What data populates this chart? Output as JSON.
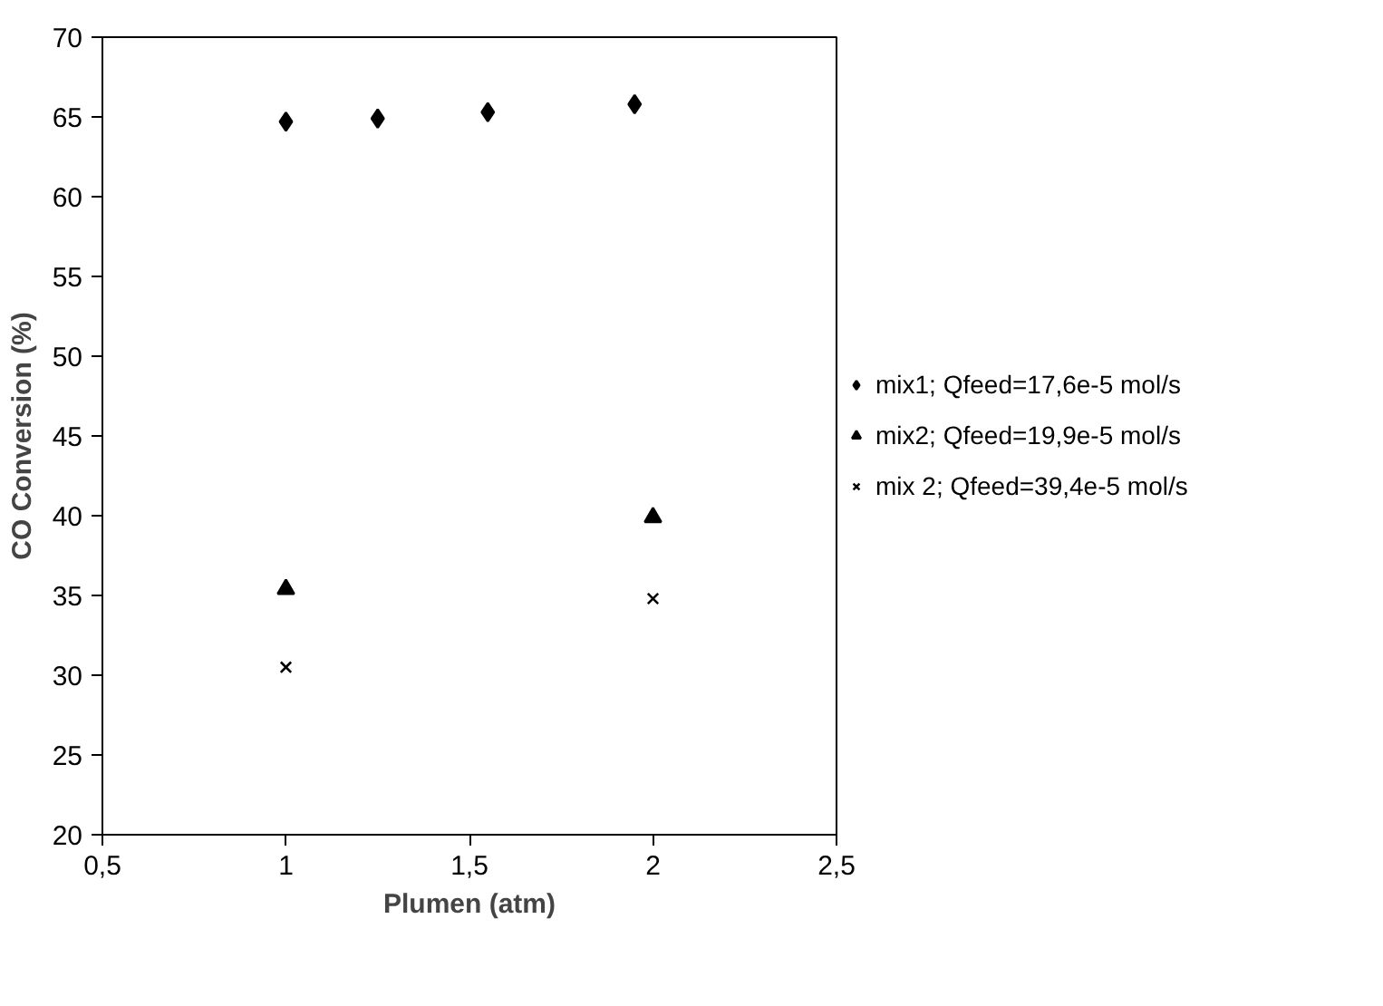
{
  "chart_data": {
    "type": "scatter",
    "xlabel": "Plumen (atm)",
    "ylabel": "CO Conversion (%)",
    "xlim": [
      0.5,
      2.5
    ],
    "xticks": [
      {
        "value": 0.5,
        "label": "0,5"
      },
      1,
      {
        "value": 1.5,
        "label": "1,5"
      },
      2,
      {
        "value": 2.5,
        "label": "2,5"
      }
    ],
    "ylim": [
      20,
      70
    ],
    "yticks": [
      20,
      25,
      30,
      35,
      40,
      45,
      50,
      55,
      60,
      65,
      70
    ],
    "grid": false,
    "legend": "right",
    "series": [
      {
        "name": "mix1; Qfeed=17,6e-5 mol/s",
        "color": "#000000",
        "marker": "diamond",
        "x": [
          1,
          1.25,
          1.55,
          1.95
        ],
        "values": [
          64.7,
          64.9,
          65.3,
          65.8
        ]
      },
      {
        "name": "mix2; Qfeed=19,9e-5 mol/s",
        "color": "#000000",
        "marker": "triangle",
        "x": [
          1,
          2
        ],
        "values": [
          35.4,
          39.9
        ]
      },
      {
        "name": "mix 2; Qfeed=39,4e-5 mol/s",
        "color": "#000000",
        "marker": "cross",
        "x": [
          1,
          2
        ],
        "values": [
          30.5,
          34.8
        ]
      }
    ]
  }
}
